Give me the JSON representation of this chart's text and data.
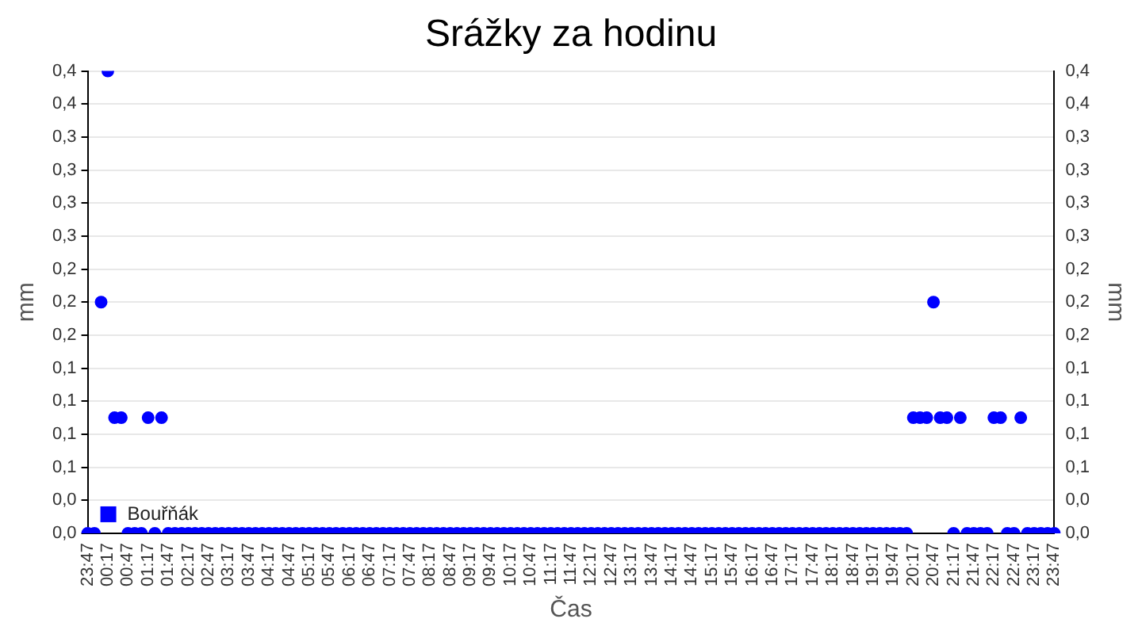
{
  "chart_data": {
    "type": "scatter",
    "title": "Srážky za hodinu",
    "xlabel": "Čas",
    "ylabel": "mm",
    "y2label": "mm",
    "categories": [
      "23:47",
      null,
      null,
      "00:17",
      null,
      null,
      "00:47",
      null,
      null,
      "01:17",
      null,
      null,
      "01:47",
      null,
      null,
      "02:17",
      null,
      null,
      "02:47",
      null,
      null,
      "03:17",
      null,
      null,
      "03:47",
      null,
      null,
      "04:17",
      null,
      null,
      "04:47",
      null,
      null,
      "05:17",
      null,
      null,
      "05:47",
      null,
      null,
      "06:17",
      null,
      null,
      "06:47",
      null,
      null,
      "07:17",
      null,
      null,
      "07:47",
      null,
      null,
      "08:17",
      null,
      null,
      "08:47",
      null,
      null,
      "09:17",
      null,
      null,
      "09:47",
      null,
      null,
      "10:17",
      null,
      null,
      "10:47",
      null,
      null,
      "11:17",
      null,
      null,
      "11:47",
      null,
      null,
      "12:17",
      null,
      null,
      "12:47",
      null,
      null,
      "13:17",
      null,
      null,
      "13:47",
      null,
      null,
      "14:17",
      null,
      null,
      "14:47",
      null,
      null,
      "15:17",
      null,
      null,
      "15:47",
      null,
      null,
      "16:17",
      null,
      null,
      "16:47",
      null,
      null,
      "17:17",
      null,
      null,
      "17:47",
      null,
      null,
      "18:17",
      null,
      null,
      "18:47",
      null,
      null,
      "19:17",
      null,
      null,
      "19:47",
      null,
      null,
      "20:17",
      null,
      null,
      "20:47",
      null,
      null,
      "21:17",
      null,
      null,
      "21:47",
      null,
      null,
      "22:17",
      null,
      null,
      "22:47",
      null,
      null,
      "23:17",
      null,
      null,
      "23:47"
    ],
    "ylim": [
      0,
      0.4
    ],
    "yticks": [
      {
        "value": 0,
        "label": "0,0"
      },
      {
        "value": 0.0286,
        "label": "0,0"
      },
      {
        "value": 0.0571,
        "label": "0,1"
      },
      {
        "value": 0.0857,
        "label": "0,1"
      },
      {
        "value": 0.1143,
        "label": "0,1"
      },
      {
        "value": 0.1429,
        "label": "0,1"
      },
      {
        "value": 0.1714,
        "label": "0,2"
      },
      {
        "value": 0.2,
        "label": "0,2"
      },
      {
        "value": 0.2286,
        "label": "0,2"
      },
      {
        "value": 0.2571,
        "label": "0,3"
      },
      {
        "value": 0.2857,
        "label": "0,3"
      },
      {
        "value": 0.3143,
        "label": "0,3"
      },
      {
        "value": 0.3429,
        "label": "0,3"
      },
      {
        "value": 0.3714,
        "label": "0,4"
      },
      {
        "value": 0.4,
        "label": "0,4"
      }
    ],
    "y2lim": [
      0,
      0.4
    ],
    "y2ticks": [
      {
        "value": 0,
        "label": "0,0"
      },
      {
        "value": 0.0286,
        "label": "0,0"
      },
      {
        "value": 0.0571,
        "label": "0,1"
      },
      {
        "value": 0.0857,
        "label": "0,1"
      },
      {
        "value": 0.1143,
        "label": "0,1"
      },
      {
        "value": 0.1429,
        "label": "0,1"
      },
      {
        "value": 0.1714,
        "label": "0,2"
      },
      {
        "value": 0.2,
        "label": "0,2"
      },
      {
        "value": 0.2286,
        "label": "0,2"
      },
      {
        "value": 0.2571,
        "label": "0,3"
      },
      {
        "value": 0.2857,
        "label": "0,3"
      },
      {
        "value": 0.3143,
        "label": "0,3"
      },
      {
        "value": 0.3429,
        "label": "0,3"
      },
      {
        "value": 0.3714,
        "label": "0,4"
      },
      {
        "value": 0.4,
        "label": "0,4"
      }
    ],
    "grid": "y",
    "legend": "bottom left",
    "marker": "circle",
    "series": [
      {
        "name": "Bouřňák",
        "color": "#0000ff",
        "values": [
          0,
          0,
          0.2,
          0.4,
          0.1,
          0.1,
          0,
          0,
          0,
          0.1,
          0,
          0.1,
          0,
          0,
          0,
          0,
          0,
          0,
          0,
          0,
          0,
          0,
          0,
          0,
          0,
          0,
          0,
          0,
          0,
          0,
          0,
          0,
          0,
          0,
          0,
          0,
          0,
          0,
          0,
          0,
          0,
          0,
          0,
          0,
          0,
          0,
          0,
          0,
          0,
          0,
          0,
          0,
          0,
          0,
          0,
          0,
          0,
          0,
          0,
          0,
          0,
          0,
          0,
          0,
          0,
          0,
          0,
          0,
          0,
          0,
          0,
          0,
          0,
          0,
          0,
          0,
          0,
          0,
          0,
          0,
          0,
          0,
          0,
          0,
          0,
          0,
          0,
          0,
          0,
          0,
          0,
          0,
          0,
          0,
          0,
          0,
          0,
          0,
          0,
          0,
          0,
          0,
          0,
          0,
          0,
          0,
          0,
          0,
          0,
          0,
          0,
          0,
          0,
          0,
          0,
          0,
          0,
          0,
          0,
          0,
          0,
          0,
          0,
          0.1,
          0.1,
          0.1,
          0.2,
          0.1,
          0.1,
          0,
          0.1,
          0,
          0,
          0,
          0,
          0.1,
          0.1,
          0,
          0,
          0.1,
          0,
          0,
          0,
          0,
          0
        ]
      }
    ]
  }
}
